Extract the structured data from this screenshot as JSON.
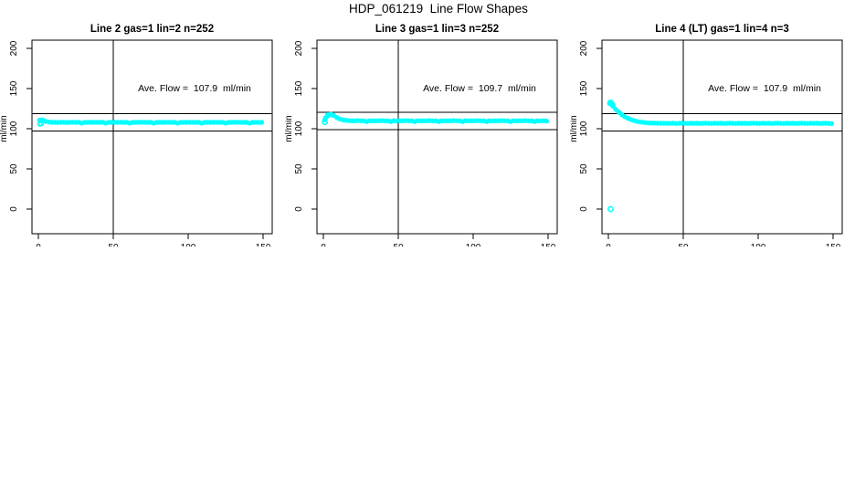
{
  "page": {
    "title": "HDP_061219  Line Flow Shapes",
    "background": "#ffffff"
  },
  "colors": {
    "data": "#00ffff",
    "axis": "#000000",
    "text": "#000000"
  },
  "chart_data": [
    {
      "type": "scatter",
      "title": "Line 2 gas=1 lin=2 n=252",
      "annotation": "Ave. Flow =  107.9  ml/min",
      "ave_flow_ml_min": 107.9,
      "n": 252,
      "xlabel": "",
      "ylabel": "ml/min",
      "xticks": [
        0,
        50,
        100,
        150
      ],
      "yticks": [
        0,
        50,
        100,
        150,
        200
      ],
      "xlim": [
        -4,
        156
      ],
      "ylim": [
        -30,
        210
      ],
      "grid": false,
      "ref_vline_x": 50,
      "ref_hlines": [
        118.7,
        97.1
      ],
      "series": {
        "name": "line-2-flow",
        "x_start": 1,
        "x_step": 2,
        "y": [
          110.5,
          110.9,
          109.0,
          108.3,
          107.9,
          108.0,
          107.8,
          108.0,
          107.9,
          107.7,
          107.9,
          108.1,
          107.8,
          107.9,
          106.9,
          108.0,
          107.8,
          107.9,
          107.9,
          108.1,
          107.8,
          107.9,
          106.9,
          108.0,
          107.8,
          107.9,
          107.9,
          108.1,
          107.8,
          107.9,
          106.9,
          108.0,
          107.8,
          107.9,
          107.9,
          108.1,
          107.8,
          107.9,
          106.9,
          108.0,
          107.8,
          107.9,
          107.9,
          108.1,
          107.8,
          107.9,
          106.9,
          108.0,
          107.8,
          107.9,
          107.9,
          108.1,
          107.8,
          107.9,
          106.9,
          108.0,
          107.8,
          107.9,
          107.9,
          108.1,
          107.8,
          107.9,
          106.9,
          108.0,
          107.8,
          107.9,
          107.9,
          108.1,
          107.8,
          107.9,
          106.9,
          108.0,
          107.8,
          107.9,
          107.8
        ]
      },
      "extra_points": [
        [
          1,
          105.8
        ],
        [
          1,
          110.6
        ],
        [
          2,
          106.5
        ],
        [
          2,
          110.0
        ],
        [
          3,
          110.6
        ]
      ],
      "outlier_points": []
    },
    {
      "type": "scatter",
      "title": "Line 3 gas=1 lin=3 n=252",
      "annotation": "Ave. Flow =  109.7  ml/min",
      "ave_flow_ml_min": 109.7,
      "n": 252,
      "xlabel": "",
      "ylabel": "ml/min",
      "xticks": [
        0,
        50,
        100,
        150
      ],
      "yticks": [
        0,
        50,
        100,
        150,
        200
      ],
      "xlim": [
        -4,
        156
      ],
      "ylim": [
        -30,
        210
      ],
      "grid": false,
      "ref_vline_x": 50,
      "ref_hlines": [
        120.7,
        98.7
      ],
      "series": {
        "name": "line-3-flow",
        "x_start": 1,
        "x_step": 2,
        "y": [
          111.0,
          116.2,
          118.0,
          116.4,
          114.0,
          112.2,
          111.0,
          110.4,
          110.1,
          109.9,
          109.9,
          110.1,
          109.8,
          109.9,
          108.9,
          110.0,
          109.8,
          109.9,
          109.9,
          110.1,
          109.8,
          109.9,
          108.9,
          110.0,
          109.8,
          109.9,
          109.9,
          110.1,
          109.8,
          109.9,
          108.9,
          110.0,
          109.8,
          109.9,
          109.9,
          110.1,
          109.8,
          109.9,
          108.9,
          110.0,
          109.8,
          109.9,
          109.9,
          110.1,
          109.8,
          109.9,
          108.9,
          110.0,
          109.8,
          109.9,
          109.9,
          110.1,
          109.8,
          109.9,
          108.9,
          110.0,
          109.8,
          109.9,
          109.9,
          110.1,
          109.8,
          109.9,
          108.9,
          110.0,
          109.8,
          109.9,
          109.9,
          110.1,
          109.8,
          109.9,
          108.9,
          110.0,
          109.8,
          109.9,
          109.6
        ]
      },
      "extra_points": [
        [
          1.5,
          113.5
        ],
        [
          3,
          117.0
        ],
        [
          5,
          117.5
        ]
      ],
      "outlier_points": [
        [
          1,
          108.3
        ]
      ]
    },
    {
      "type": "scatter",
      "title": "Line 4 (LT) gas=1 lin=4 n=3",
      "annotation": "Ave. Flow =  107.9  ml/min",
      "ave_flow_ml_min": 107.9,
      "n": 3,
      "xlabel": "",
      "ylabel": "ml/min",
      "xticks": [
        0,
        50,
        100,
        150
      ],
      "yticks": [
        0,
        50,
        100,
        150,
        200
      ],
      "xlim": [
        -4,
        156
      ],
      "ylim": [
        -30,
        210
      ],
      "grid": false,
      "ref_vline_x": 50,
      "ref_hlines": [
        118.7,
        97.1
      ],
      "series": {
        "name": "line-4-flow",
        "x_start": 1,
        "x_step": 2,
        "y": [
          133.0,
          128.2,
          124.0,
          120.4,
          117.4,
          114.9,
          112.9,
          111.4,
          110.1,
          109.2,
          108.4,
          107.9,
          107.5,
          107.2,
          107.0,
          106.9,
          106.8,
          106.8,
          106.7,
          106.7,
          106.7,
          106.8,
          106.6,
          106.7,
          106.9,
          106.7,
          106.6,
          106.8,
          106.7,
          106.8,
          106.6,
          106.7,
          106.9,
          106.7,
          106.6,
          106.8,
          106.7,
          106.8,
          106.6,
          106.7,
          106.9,
          106.7,
          106.6,
          106.8,
          106.7,
          106.8,
          106.6,
          106.7,
          106.9,
          106.7,
          106.6,
          106.8,
          106.7,
          106.8,
          106.6,
          106.7,
          106.9,
          106.7,
          106.6,
          106.8,
          106.7,
          106.8,
          106.6,
          106.7,
          106.9,
          106.7,
          106.6,
          106.8,
          106.7,
          106.8,
          106.6,
          106.7,
          106.8,
          106.6,
          106.5
        ]
      },
      "extra_points": [
        [
          1,
          131.5
        ],
        [
          2,
          130.8
        ],
        [
          2,
          132.8
        ],
        [
          3,
          129.5
        ]
      ],
      "outlier_points": [
        [
          1.5,
          0
        ]
      ]
    }
  ]
}
